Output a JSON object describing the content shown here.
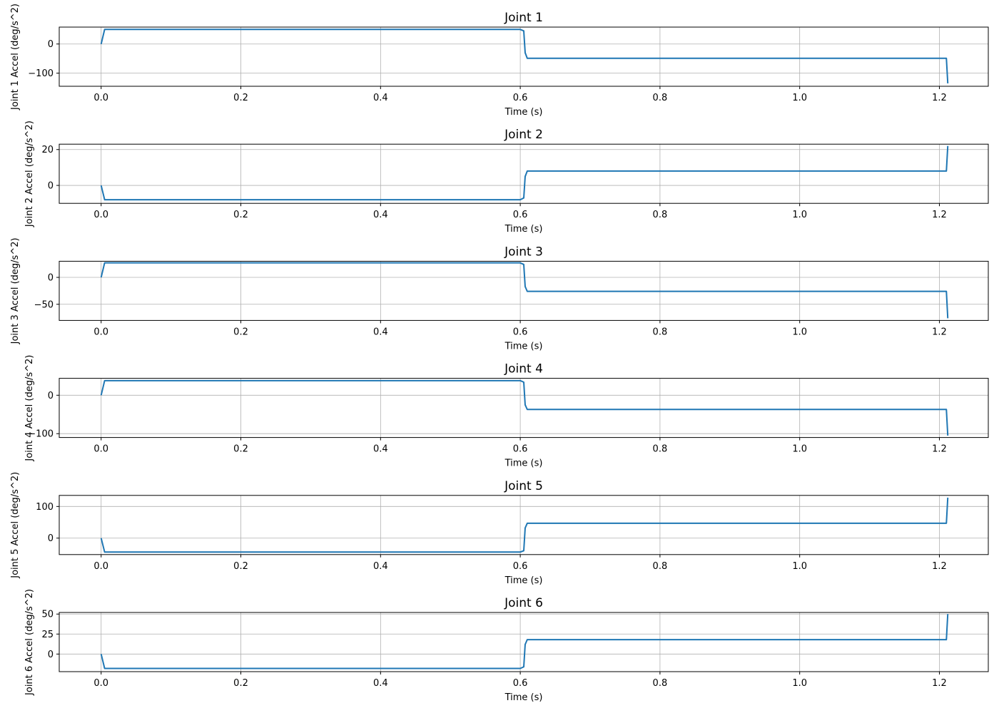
{
  "chart_data": [
    {
      "type": "line",
      "title": "Joint 1",
      "xlabel": "Time (s)",
      "ylabel": "Joint 1 Accel (deg/s^2)",
      "xlim": [
        -0.06,
        1.27
      ],
      "ylim": [
        -145,
        58
      ],
      "xticks": [
        0.0,
        0.2,
        0.4,
        0.6,
        0.8,
        1.0,
        1.2
      ],
      "xtick_labels": [
        "0.0",
        "0.2",
        "0.4",
        "0.6",
        "0.8",
        "1.0",
        "1.2"
      ],
      "yticks": [
        0,
        -100
      ],
      "ytick_labels": [
        "0",
        "−100"
      ],
      "grid": true,
      "color": "#1f77b4",
      "x": [
        0.0,
        0.005,
        0.6,
        0.605,
        0.607,
        0.61,
        1.21,
        1.212
      ],
      "y": [
        0,
        50,
        50,
        45,
        -30,
        -49,
        -49,
        -135
      ]
    },
    {
      "type": "line",
      "title": "Joint 2",
      "xlabel": "Time (s)",
      "ylabel": "Joint 2 Accel (deg/s^2)",
      "xlim": [
        -0.06,
        1.27
      ],
      "ylim": [
        -10,
        23
      ],
      "xticks": [
        0.0,
        0.2,
        0.4,
        0.6,
        0.8,
        1.0,
        1.2
      ],
      "xtick_labels": [
        "0.0",
        "0.2",
        "0.4",
        "0.6",
        "0.8",
        "1.0",
        "1.2"
      ],
      "yticks": [
        20,
        0
      ],
      "ytick_labels": [
        "20",
        "0"
      ],
      "grid": true,
      "color": "#1f77b4",
      "x": [
        0.0,
        0.005,
        0.6,
        0.605,
        0.607,
        0.61,
        1.21,
        1.212
      ],
      "y": [
        0,
        -8,
        -8,
        -7,
        5,
        8,
        8,
        22
      ]
    },
    {
      "type": "line",
      "title": "Joint 3",
      "xlabel": "Time (s)",
      "ylabel": "Joint 3 Accel (deg/s^2)",
      "xlim": [
        -0.06,
        1.27
      ],
      "ylim": [
        -80,
        30
      ],
      "xticks": [
        0.0,
        0.2,
        0.4,
        0.6,
        0.8,
        1.0,
        1.2
      ],
      "xtick_labels": [
        "0.0",
        "0.2",
        "0.4",
        "0.6",
        "0.8",
        "1.0",
        "1.2"
      ],
      "yticks": [
        0,
        -50
      ],
      "ytick_labels": [
        "0",
        "−50"
      ],
      "grid": true,
      "color": "#1f77b4",
      "x": [
        0.0,
        0.005,
        0.6,
        0.605,
        0.607,
        0.61,
        1.21,
        1.212
      ],
      "y": [
        0,
        27,
        27,
        24,
        -17,
        -26,
        -26,
        -76
      ]
    },
    {
      "type": "line",
      "title": "Joint 4",
      "xlabel": "Time (s)",
      "ylabel": "Joint 4 Accel (deg/s^2)",
      "xlim": [
        -0.06,
        1.27
      ],
      "ylim": [
        -110,
        44
      ],
      "xticks": [
        0.0,
        0.2,
        0.4,
        0.6,
        0.8,
        1.0,
        1.2
      ],
      "xtick_labels": [
        "0.0",
        "0.2",
        "0.4",
        "0.6",
        "0.8",
        "1.0",
        "1.2"
      ],
      "yticks": [
        0,
        -100
      ],
      "ytick_labels": [
        "0",
        "−100"
      ],
      "grid": true,
      "color": "#1f77b4",
      "x": [
        0.0,
        0.005,
        0.6,
        0.605,
        0.607,
        0.61,
        1.21,
        1.212
      ],
      "y": [
        0,
        38,
        38,
        34,
        -25,
        -37,
        -37,
        -105
      ]
    },
    {
      "type": "line",
      "title": "Joint 5",
      "xlabel": "Time (s)",
      "ylabel": "Joint 5 Accel (deg/s^2)",
      "xlim": [
        -0.06,
        1.27
      ],
      "ylim": [
        -52,
        135
      ],
      "xticks": [
        0.0,
        0.2,
        0.4,
        0.6,
        0.8,
        1.0,
        1.2
      ],
      "xtick_labels": [
        "0.0",
        "0.2",
        "0.4",
        "0.6",
        "0.8",
        "1.0",
        "1.2"
      ],
      "yticks": [
        100,
        0
      ],
      "ytick_labels": [
        "100",
        "0"
      ],
      "grid": true,
      "color": "#1f77b4",
      "x": [
        0.0,
        0.005,
        0.6,
        0.605,
        0.607,
        0.61,
        1.21,
        1.212
      ],
      "y": [
        0,
        -44,
        -44,
        -40,
        32,
        47,
        47,
        128
      ]
    },
    {
      "type": "line",
      "title": "Joint 6",
      "xlabel": "Time (s)",
      "ylabel": "Joint 6 Accel (deg/s^2)",
      "xlim": [
        -0.06,
        1.27
      ],
      "ylim": [
        -22,
        52
      ],
      "xticks": [
        0.0,
        0.2,
        0.4,
        0.6,
        0.8,
        1.0,
        1.2
      ],
      "xtick_labels": [
        "0.0",
        "0.2",
        "0.4",
        "0.6",
        "0.8",
        "1.0",
        "1.2"
      ],
      "yticks": [
        50,
        25,
        0
      ],
      "ytick_labels": [
        "50",
        "25",
        "0"
      ],
      "grid": true,
      "color": "#1f77b4",
      "x": [
        0.0,
        0.005,
        0.6,
        0.605,
        0.607,
        0.61,
        1.21,
        1.212
      ],
      "y": [
        0,
        -18,
        -18,
        -16,
        12,
        18,
        18,
        50
      ]
    }
  ]
}
